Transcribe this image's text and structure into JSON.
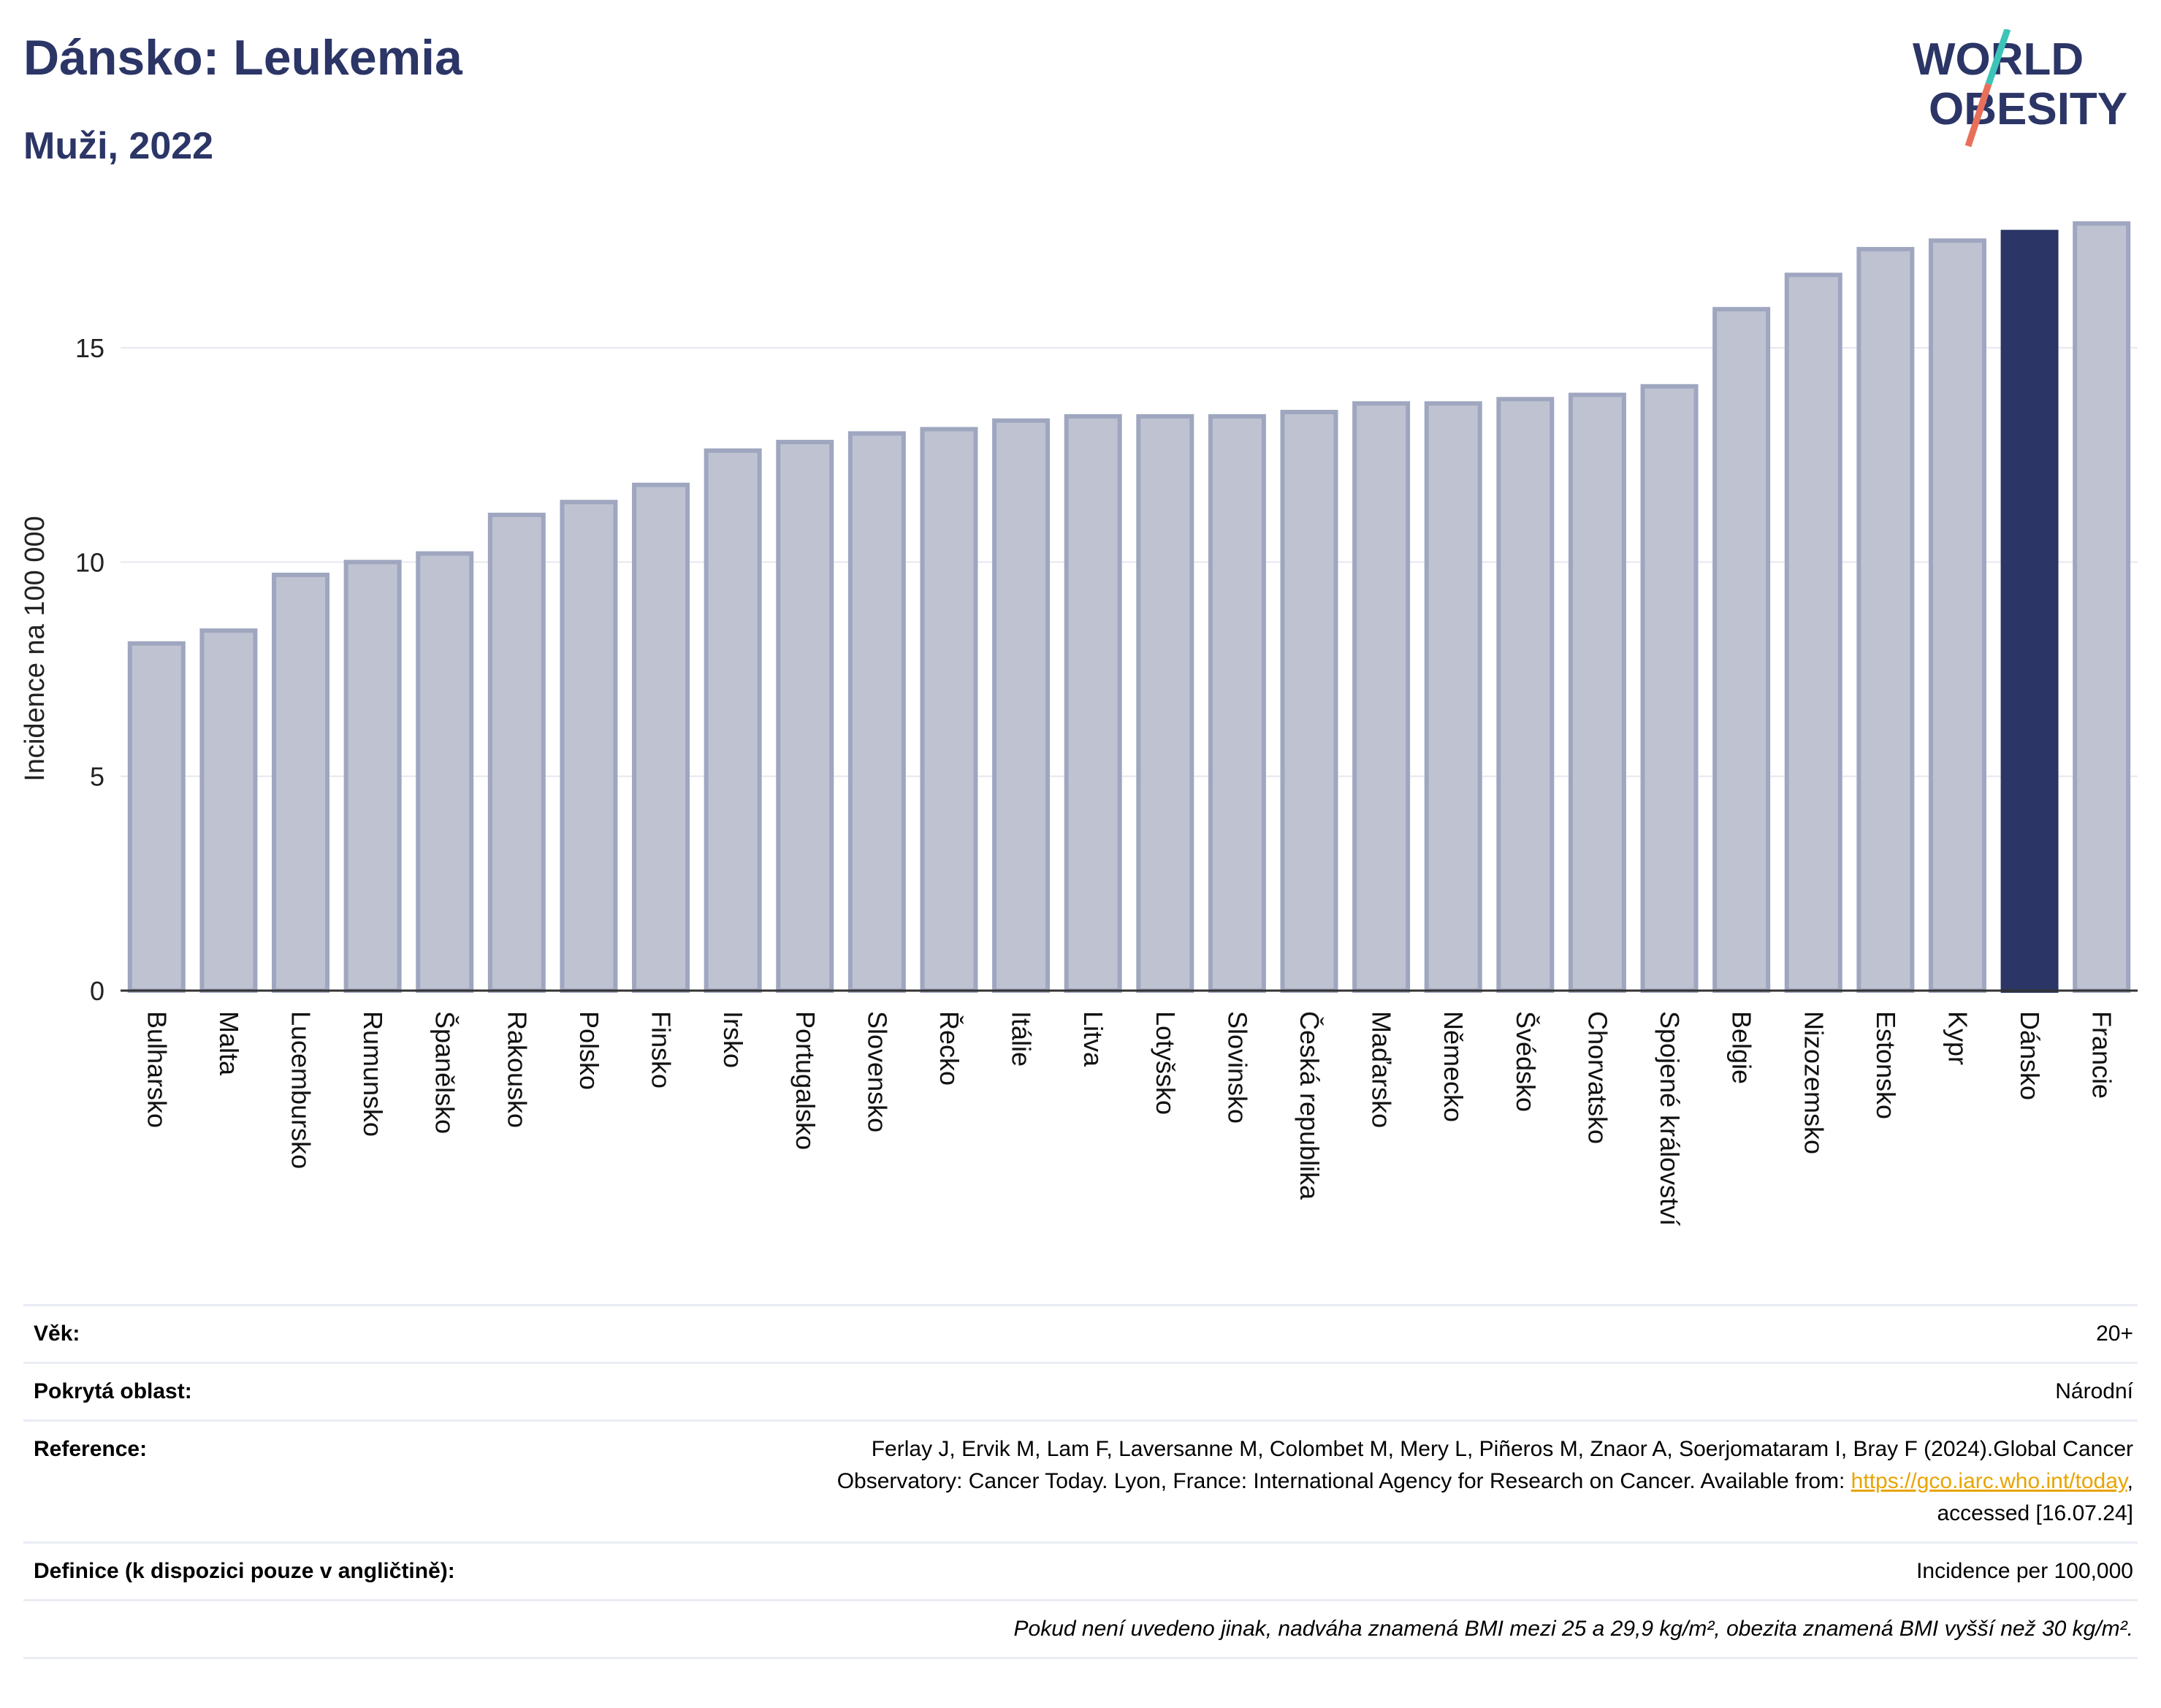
{
  "header": {
    "title": "Dánsko: Leukemia",
    "subtitle": "Muži, 2022",
    "logo_top": "WORLD",
    "logo_bottom": "OBESITY"
  },
  "colors": {
    "bar": "#bfc3d1",
    "bar_border": "#9fa6bf",
    "highlight": "#2b3566",
    "text_dark": "#2b3566",
    "grid": "#e6e8ef",
    "logo_slash_top": "#3cc4b8",
    "logo_slash_bottom": "#e8705a",
    "link": "#e8a400"
  },
  "chart_data": {
    "type": "bar",
    "title": "Dánsko: Leukemia",
    "subtitle": "Muži, 2022",
    "ylabel": "Incidence na 100 000",
    "xlabel": "",
    "ylim": [
      0,
      18
    ],
    "yticks": [
      0,
      5,
      10,
      15
    ],
    "grid": true,
    "highlight": "Dánsko",
    "categories": [
      "Bulharsko",
      "Malta",
      "Lucembursko",
      "Rumunsko",
      "Španělsko",
      "Rakousko",
      "Polsko",
      "Finsko",
      "Irsko",
      "Portugalsko",
      "Slovensko",
      "Řecko",
      "Itálie",
      "Litva",
      "Lotyšsko",
      "Slovinsko",
      "Česká republika",
      "Maďarsko",
      "Německo",
      "Švédsko",
      "Chorvatsko",
      "Spojené království",
      "Belgie",
      "Nizozemsko",
      "Estonsko",
      "Kypr",
      "Dánsko",
      "Francie"
    ],
    "values": [
      8.1,
      8.4,
      9.7,
      10.0,
      10.2,
      11.1,
      11.4,
      11.8,
      12.6,
      12.8,
      13.0,
      13.1,
      13.3,
      13.4,
      13.4,
      13.4,
      13.5,
      13.7,
      13.7,
      13.8,
      13.9,
      14.1,
      15.9,
      16.7,
      17.3,
      17.5,
      17.7,
      17.9
    ]
  },
  "info": {
    "age_label": "Věk:",
    "age_value": "20+",
    "area_label": "Pokrytá oblast:",
    "area_value": "Národní",
    "reference_label": "Reference:",
    "reference_line1": "Ferlay J, Ervik M, Lam F, Laversanne M, Colombet M, Mery L, Piñeros M, Znaor A, Soerjomataram I, Bray F (2024).Global Cancer",
    "reference_line2_pre": "Observatory: Cancer Today. Lyon, France: International Agency for Research on Cancer. Available from: ",
    "reference_link": "https://gco.iarc.who.int/today",
    "reference_line2_post": ",",
    "reference_line3": "accessed [16.07.24]",
    "definition_label": "Definice (k dispozici pouze v angličtině):",
    "definition_value": "Incidence per 100,000",
    "note": "Pokud není uvedeno jinak, nadváha znamená BMI mezi 25 a 29,9 kg/m², obezita znamená BMI vyšší než 30 kg/m²."
  }
}
